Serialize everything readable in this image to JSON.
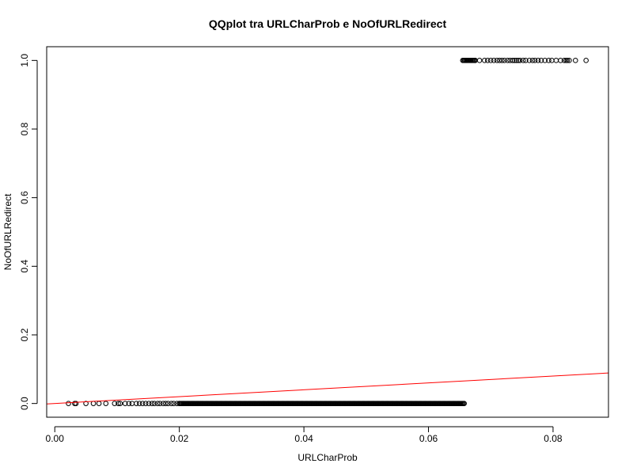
{
  "chart_data": {
    "type": "scatter",
    "title": "QQplot tra URLCharProb e NoOfURLRedirect",
    "xlabel": "URLCharProb",
    "ylabel": "NoOfURLRedirect",
    "xlim": [
      -0.0013,
      0.0889
    ],
    "ylim": [
      -0.04,
      1.04
    ],
    "x_ticks": [
      {
        "value": 0.0,
        "label": "0.00"
      },
      {
        "value": 0.02,
        "label": "0.02"
      },
      {
        "value": 0.04,
        "label": "0.04"
      },
      {
        "value": 0.06,
        "label": "0.06"
      },
      {
        "value": 0.08,
        "label": "0.08"
      }
    ],
    "y_ticks": [
      {
        "value": 0.0,
        "label": "0.0"
      },
      {
        "value": 0.2,
        "label": "0.2"
      },
      {
        "value": 0.4,
        "label": "0.4"
      },
      {
        "value": 0.6,
        "label": "0.6"
      },
      {
        "value": 0.8,
        "label": "0.8"
      },
      {
        "value": 1.0,
        "label": "1.0"
      }
    ],
    "grid": false,
    "marker": "open-circle",
    "point_color": "#000000",
    "series": [
      {
        "values_y": 0,
        "x": [
          0.0022,
          0.0032,
          0.0034,
          0.005,
          0.0062,
          0.0071,
          0.0082,
          0.0096,
          0.0102,
          0.0105,
          0.0113,
          0.0119,
          0.0124,
          0.0131,
          0.0136,
          0.0141,
          0.0146,
          0.0151,
          0.0156,
          0.016,
          0.0165,
          0.0169,
          0.0174,
          0.0178,
          0.0182,
          0.0187,
          0.0191,
          0.0196,
          0.02
        ],
        "dense_range": [
          0.02,
          0.0658
        ]
      },
      {
        "values_y": 1,
        "x": [
          0.0675,
          0.0682,
          0.069,
          0.0695,
          0.07,
          0.0705,
          0.071,
          0.0714,
          0.0718,
          0.0722,
          0.0727,
          0.0731,
          0.0735,
          0.0738,
          0.0741,
          0.0744,
          0.0747,
          0.0752,
          0.0756,
          0.0762,
          0.0767,
          0.0771,
          0.0776,
          0.0781,
          0.0787,
          0.0793,
          0.0798,
          0.0805,
          0.0812,
          0.0818,
          0.0821,
          0.0823,
          0.0826,
          0.0836,
          0.0853
        ],
        "dense_range": [
          0.0655,
          0.0675
        ]
      }
    ],
    "reference_line": {
      "color": "#ff0000",
      "intercept": 0,
      "slope": 1
    }
  }
}
